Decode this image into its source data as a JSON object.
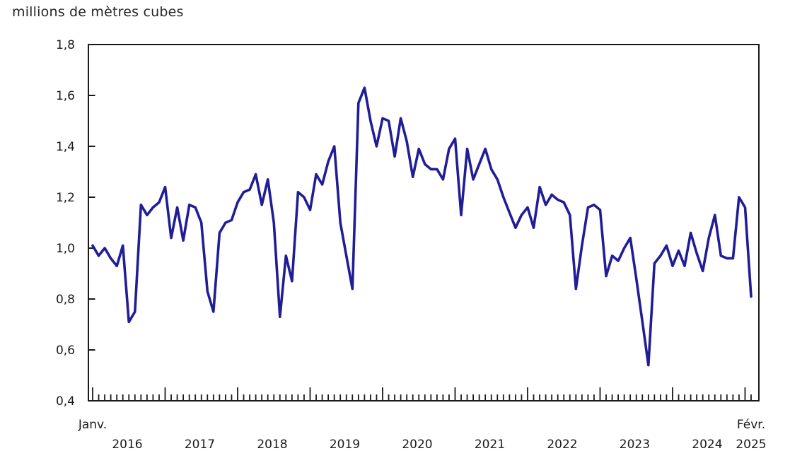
{
  "chart_data": {
    "type": "line",
    "title": "millions de mètres cubes",
    "ylabel": "millions de mètres cubes",
    "frequency": "monthly",
    "x_start": "Janv. 2016",
    "x_end": "Févr. 2025",
    "grid": false,
    "legend": "none",
    "y_axis": {
      "min": 0.4,
      "max": 1.8,
      "step": 0.2,
      "tick_labels": [
        "0,4",
        "0,6",
        "0,8",
        "1,0",
        "1,2",
        "1,4",
        "1,6",
        "1,8"
      ]
    },
    "x_axis": {
      "start_label": "Janv.",
      "end_label": "Févr.",
      "year_labels": [
        "2016",
        "2017",
        "2018",
        "2019",
        "2020",
        "2021",
        "2022",
        "2023",
        "2024",
        "2025"
      ],
      "minor_tick": "month",
      "major_tick": "january"
    },
    "series": [
      {
        "color": "#201d96",
        "values": [
          1.01,
          0.97,
          1.0,
          0.96,
          0.93,
          1.01,
          0.71,
          0.75,
          1.17,
          1.13,
          1.16,
          1.18,
          1.24,
          1.04,
          1.16,
          1.03,
          1.17,
          1.16,
          1.1,
          0.83,
          0.75,
          1.06,
          1.1,
          1.11,
          1.18,
          1.22,
          1.23,
          1.29,
          1.17,
          1.27,
          1.1,
          0.73,
          0.97,
          0.87,
          1.22,
          1.2,
          1.15,
          1.29,
          1.25,
          1.34,
          1.4,
          1.1,
          0.97,
          0.84,
          1.57,
          1.63,
          1.5,
          1.4,
          1.51,
          1.5,
          1.36,
          1.51,
          1.42,
          1.28,
          1.39,
          1.33,
          1.31,
          1.31,
          1.27,
          1.39,
          1.43,
          1.13,
          1.39,
          1.27,
          1.33,
          1.39,
          1.31,
          1.27,
          1.2,
          1.14,
          1.08,
          1.13,
          1.16,
          1.08,
          1.24,
          1.17,
          1.21,
          1.19,
          1.18,
          1.13,
          0.84,
          1.01,
          1.16,
          1.17,
          1.15,
          0.89,
          0.97,
          0.95,
          1.0,
          1.04,
          0.88,
          0.71,
          0.54,
          0.94,
          0.97,
          1.01,
          0.93,
          0.99,
          0.93,
          1.06,
          0.98,
          0.91,
          1.04,
          1.13,
          0.97,
          0.96,
          0.96,
          1.2,
          1.16,
          0.81
        ]
      }
    ]
  }
}
